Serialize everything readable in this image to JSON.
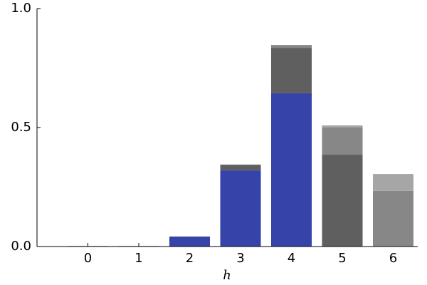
{
  "chart_data": {
    "type": "stacked_bar",
    "x_label": "h",
    "categories": [
      "0",
      "1",
      "2",
      "3",
      "4",
      "5",
      "6"
    ],
    "series": [
      {
        "color": "#3643a8",
        "values": [
          0.002,
          0.002,
          0.042,
          0.32,
          0.644,
          0,
          0
        ]
      },
      {
        "color": "#5f5f5f",
        "values": [
          0,
          0,
          0,
          0.024,
          0.191,
          0.386,
          0
        ]
      },
      {
        "color": "#878787",
        "values": [
          0,
          0,
          0,
          0,
          0.012,
          0.114,
          0.234
        ]
      },
      {
        "color": "#a6a6a6",
        "values": [
          0,
          0,
          0,
          0,
          0,
          0.009,
          0.071
        ]
      }
    ],
    "ylim": [
      0,
      1
    ],
    "yticks": [
      {
        "value": 0,
        "label": "0.0"
      },
      {
        "value": 0.5,
        "label": "0.5"
      },
      {
        "value": 1,
        "label": "1.0"
      }
    ],
    "grid": false
  }
}
